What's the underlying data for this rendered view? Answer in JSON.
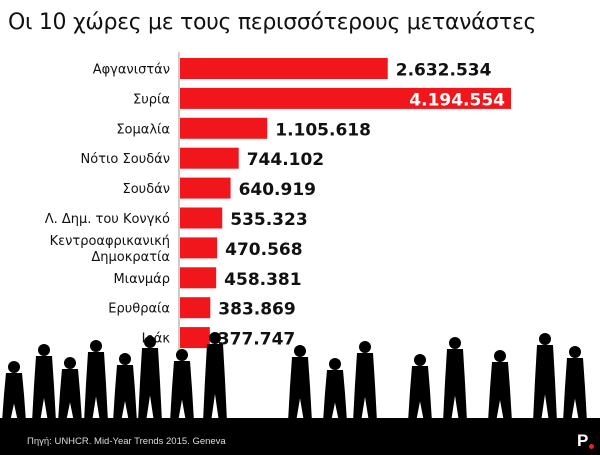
{
  "chart_data": {
    "type": "bar",
    "orientation": "horizontal",
    "title": "Οι 10 χώρες με τους περισσότερους μετανάστες",
    "categories": [
      "Αφγανιστάν",
      "Συρία",
      "Σομαλία",
      "Νότιο Σουδάν",
      "Σουδάν",
      "Λ. Δημ. του Κονγκό",
      "Κεντροαφρικανική Δημοκρατία",
      "Μιανμάρ",
      "Ερυθραία",
      "Ιράκ"
    ],
    "values": [
      2632534,
      4194554,
      1105618,
      744102,
      640919,
      535323,
      470568,
      458381,
      383869,
      377747
    ],
    "value_labels": [
      "2.632.534",
      "4.194.554",
      "1.105.618",
      "744.102",
      "640.919",
      "535.323",
      "470.568",
      "458.381",
      "383.869",
      "377.747"
    ],
    "bar_color": "#f0161b",
    "grid": false
  },
  "footer": {
    "source": "Πηγή: UNHCR. Mid-Year Trends 2015. Geneva",
    "logo": "P"
  }
}
